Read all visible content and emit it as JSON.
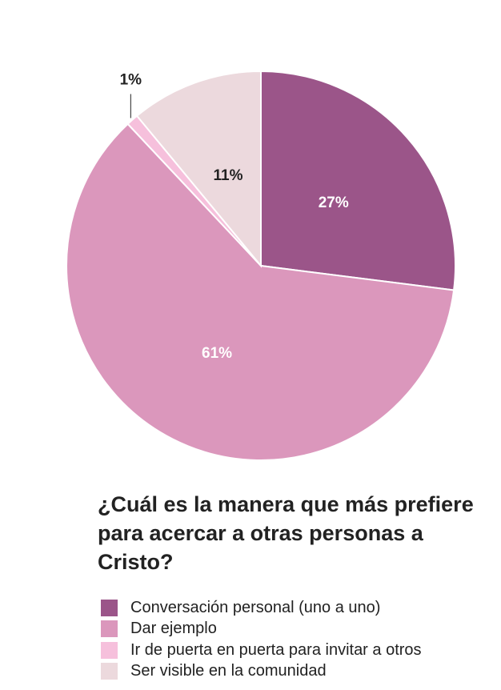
{
  "chart_data": {
    "type": "pie",
    "title": "¿Cuál es la manera que más prefiere para acercar a otras personas a Cristo?",
    "legend_position": "bottom",
    "slices": [
      {
        "label": "Conversación personal (uno a uno)",
        "value": 27,
        "display": "27%",
        "color": "#9b5589",
        "label_color": "#ffffff"
      },
      {
        "label": "Dar ejemplo",
        "value": 61,
        "display": "61%",
        "color": "#db97bc",
        "label_color": "#ffffff"
      },
      {
        "label": "Ir de puerta en puerta para invitar a otros",
        "value": 1,
        "display": "1%",
        "color": "#f6c0dc",
        "label_color": "#222222"
      },
      {
        "label": "Ser visible en la comunidad",
        "value": 11,
        "display": "11%",
        "color": "#ecd9dd",
        "label_color": "#222222"
      }
    ]
  }
}
